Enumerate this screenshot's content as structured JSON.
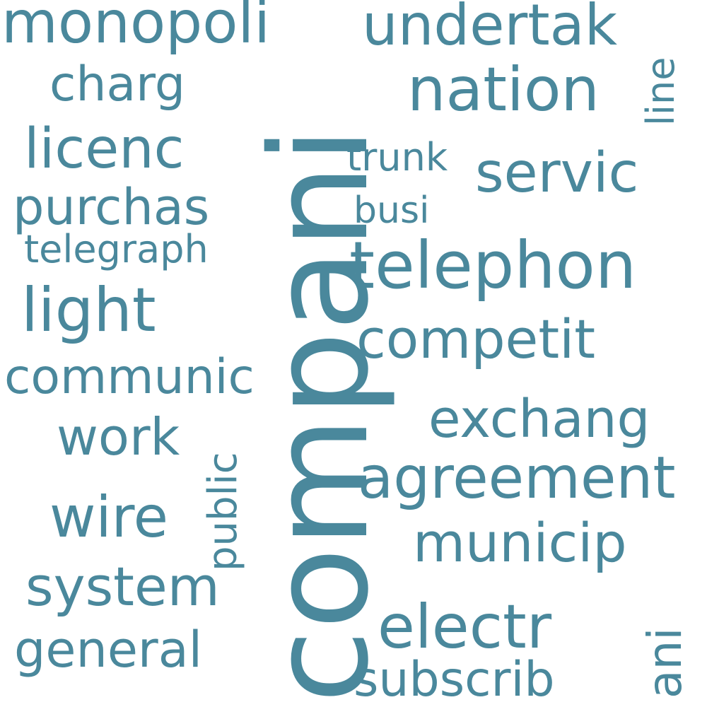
{
  "color": "#4a889c",
  "words": {
    "compani": "compani",
    "telephon": "telephon",
    "monopoli": "monopoli",
    "undertak": "undertak",
    "nation": "nation",
    "charg": "charg",
    "line": "line",
    "licenc": "licenc",
    "trunk": "trunk",
    "servic": "servic",
    "purchas": "purchas",
    "busi": "busi",
    "telegraph": "telegraph",
    "light": "light",
    "competit": "competit",
    "communic": "communic",
    "exchang": "exchang",
    "work": "work",
    "public": "public",
    "agreement": "agreement",
    "wire": "wire",
    "municip": "municip",
    "system": "system",
    "electr": "electr",
    "ani": "ani",
    "general": "general",
    "subscrib": "subscrib"
  }
}
